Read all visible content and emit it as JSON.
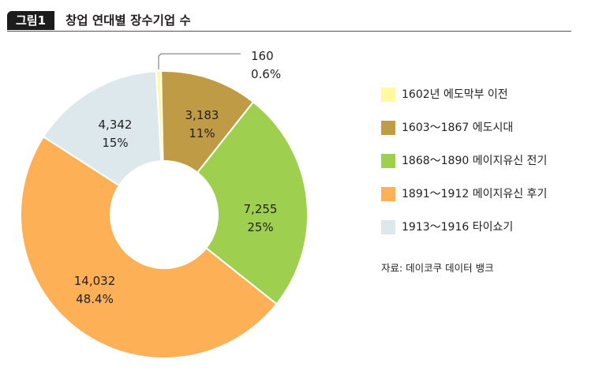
{
  "figure": {
    "tag": "그림1",
    "title": "창업 연대별 장수기업 수",
    "source": "자료: 데이코쿠 데이터 뱅크"
  },
  "chart_data": {
    "type": "pie",
    "donut": true,
    "title": "창업 연대별 장수기업 수",
    "categories": [
      "1602년 에도막부 이전",
      "1603～1867 에도시대",
      "1868～1890 메이지유신 전기",
      "1891～1912 메이지유신 후기",
      "1913～1916 타이쇼기"
    ],
    "values": [
      160,
      3183,
      7255,
      14032,
      4342
    ],
    "percents": [
      0.6,
      11,
      25,
      48.4,
      15
    ],
    "value_labels": [
      "160",
      "3,183",
      "7,255",
      "14,032",
      "4,342"
    ],
    "percent_labels": [
      "0.6%",
      "11%",
      "25%",
      "48.4%",
      "15%"
    ],
    "colors": [
      "#fff9a0",
      "#bf9b45",
      "#9fcf4f",
      "#fdb055",
      "#dce8ec"
    ],
    "legend_position": "right"
  }
}
